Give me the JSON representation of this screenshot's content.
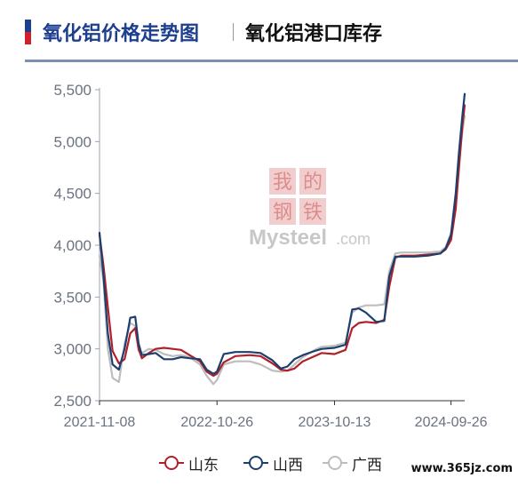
{
  "header": {
    "active_tab": "氧化铝价格走势图",
    "other_tab": "氧化铝港口库存",
    "accent_colors": [
      "#1d3f8f",
      "#d21f2b"
    ]
  },
  "watermark": {
    "chars": [
      "我",
      "的",
      "钢",
      "铁"
    ],
    "brand": "Mysteel",
    "suffix": ".com"
  },
  "footer": {
    "url": "www.365jz.com"
  },
  "chart_data": {
    "type": "line",
    "title": "",
    "xlabel": "",
    "ylabel": "",
    "ylim": [
      2500,
      5500
    ],
    "yticks": [
      2500,
      3000,
      3500,
      4000,
      4500,
      5000,
      5500
    ],
    "ytick_labels": [
      "2,500",
      "3,000",
      "3,500",
      "4,000",
      "4,500",
      "5,000",
      "5,500"
    ],
    "xlim": [
      "2021-11-08",
      "2024-11-06"
    ],
    "xticks": [
      "2021-11-08",
      "2022-10-26",
      "2023-10-13",
      "2024-09-26"
    ],
    "grid": false,
    "legend_position": "bottom",
    "series": [
      {
        "name": "山东",
        "color": "#b0202b",
        "points": [
          [
            "2021-11-08",
            4100
          ],
          [
            "2021-11-20",
            3800
          ],
          [
            "2021-12-03",
            3400
          ],
          [
            "2021-12-17",
            2980
          ],
          [
            "2022-01-05",
            2860
          ],
          [
            "2022-01-22",
            2900
          ],
          [
            "2022-02-08",
            3150
          ],
          [
            "2022-02-23",
            3200
          ],
          [
            "2022-03-05",
            3000
          ],
          [
            "2022-03-15",
            2910
          ],
          [
            "2022-04-05",
            2960
          ],
          [
            "2022-04-25",
            3000
          ],
          [
            "2022-05-20",
            3010
          ],
          [
            "2022-06-15",
            3000
          ],
          [
            "2022-07-10",
            2990
          ],
          [
            "2022-08-05",
            2940
          ],
          [
            "2022-09-05",
            2880
          ],
          [
            "2022-09-25",
            2780
          ],
          [
            "2022-10-15",
            2740
          ],
          [
            "2022-10-26",
            2760
          ],
          [
            "2022-11-15",
            2870
          ],
          [
            "2022-12-20",
            2930
          ],
          [
            "2023-02-01",
            2940
          ],
          [
            "2023-03-05",
            2930
          ],
          [
            "2023-04-10",
            2860
          ],
          [
            "2023-05-05",
            2800
          ],
          [
            "2023-05-25",
            2790
          ],
          [
            "2023-06-15",
            2810
          ],
          [
            "2023-07-10",
            2880
          ],
          [
            "2023-08-15",
            2930
          ],
          [
            "2023-09-05",
            2960
          ],
          [
            "2023-10-13",
            2950
          ],
          [
            "2023-11-15",
            2990
          ],
          [
            "2023-12-05",
            3200
          ],
          [
            "2023-12-25",
            3250
          ],
          [
            "2024-01-15",
            3260
          ],
          [
            "2024-02-15",
            3250
          ],
          [
            "2024-03-10",
            3280
          ],
          [
            "2024-03-25",
            3600
          ],
          [
            "2024-04-12",
            3880
          ],
          [
            "2024-05-01",
            3900
          ],
          [
            "2024-06-10",
            3900
          ],
          [
            "2024-07-20",
            3910
          ],
          [
            "2024-08-25",
            3920
          ],
          [
            "2024-09-10",
            3960
          ],
          [
            "2024-09-26",
            4050
          ],
          [
            "2024-10-10",
            4350
          ],
          [
            "2024-10-20",
            4750
          ],
          [
            "2024-10-30",
            5150
          ],
          [
            "2024-11-06",
            5350
          ]
        ]
      },
      {
        "name": "山西",
        "color": "#1d3f6e",
        "points": [
          [
            "2021-11-08",
            4120
          ],
          [
            "2021-11-20",
            3700
          ],
          [
            "2021-12-03",
            3150
          ],
          [
            "2021-12-17",
            2850
          ],
          [
            "2022-01-05",
            2800
          ],
          [
            "2022-01-22",
            3000
          ],
          [
            "2022-02-08",
            3300
          ],
          [
            "2022-02-23",
            3310
          ],
          [
            "2022-03-05",
            3050
          ],
          [
            "2022-03-15",
            2940
          ],
          [
            "2022-04-05",
            2950
          ],
          [
            "2022-04-25",
            2960
          ],
          [
            "2022-05-20",
            2900
          ],
          [
            "2022-06-15",
            2900
          ],
          [
            "2022-07-10",
            2920
          ],
          [
            "2022-08-05",
            2910
          ],
          [
            "2022-09-05",
            2900
          ],
          [
            "2022-09-25",
            2800
          ],
          [
            "2022-10-15",
            2760
          ],
          [
            "2022-10-26",
            2780
          ],
          [
            "2022-11-15",
            2950
          ],
          [
            "2022-12-20",
            2970
          ],
          [
            "2023-02-01",
            2970
          ],
          [
            "2023-03-05",
            2960
          ],
          [
            "2023-04-10",
            2890
          ],
          [
            "2023-05-05",
            2810
          ],
          [
            "2023-05-25",
            2830
          ],
          [
            "2023-06-15",
            2900
          ],
          [
            "2023-07-10",
            2940
          ],
          [
            "2023-08-15",
            2980
          ],
          [
            "2023-09-05",
            3000
          ],
          [
            "2023-10-13",
            3010
          ],
          [
            "2023-11-15",
            3040
          ],
          [
            "2023-12-05",
            3380
          ],
          [
            "2023-12-25",
            3390
          ],
          [
            "2024-01-15",
            3350
          ],
          [
            "2024-02-15",
            3260
          ],
          [
            "2024-03-10",
            3270
          ],
          [
            "2024-03-25",
            3700
          ],
          [
            "2024-04-12",
            3890
          ],
          [
            "2024-05-01",
            3890
          ],
          [
            "2024-06-10",
            3890
          ],
          [
            "2024-07-20",
            3900
          ],
          [
            "2024-08-25",
            3920
          ],
          [
            "2024-09-10",
            3970
          ],
          [
            "2024-09-26",
            4100
          ],
          [
            "2024-10-10",
            4500
          ],
          [
            "2024-10-20",
            4900
          ],
          [
            "2024-10-30",
            5250
          ],
          [
            "2024-11-06",
            5460
          ]
        ]
      },
      {
        "name": "广西",
        "color": "#bdbdbd",
        "points": [
          [
            "2021-11-08",
            3900
          ],
          [
            "2021-11-20",
            3650
          ],
          [
            "2021-12-03",
            3000
          ],
          [
            "2021-12-17",
            2720
          ],
          [
            "2022-01-05",
            2680
          ],
          [
            "2022-01-22",
            3050
          ],
          [
            "2022-02-08",
            3250
          ],
          [
            "2022-02-23",
            3220
          ],
          [
            "2022-03-05",
            2980
          ],
          [
            "2022-03-15",
            2960
          ],
          [
            "2022-04-05",
            3000
          ],
          [
            "2022-04-25",
            2990
          ],
          [
            "2022-05-20",
            2950
          ],
          [
            "2022-06-15",
            2930
          ],
          [
            "2022-07-10",
            2940
          ],
          [
            "2022-08-05",
            2920
          ],
          [
            "2022-09-05",
            2850
          ],
          [
            "2022-09-25",
            2740
          ],
          [
            "2022-10-15",
            2660
          ],
          [
            "2022-10-26",
            2700
          ],
          [
            "2022-11-15",
            2850
          ],
          [
            "2022-12-20",
            2880
          ],
          [
            "2023-02-01",
            2880
          ],
          [
            "2023-03-05",
            2850
          ],
          [
            "2023-04-10",
            2790
          ],
          [
            "2023-05-05",
            2780
          ],
          [
            "2023-05-25",
            2790
          ],
          [
            "2023-06-15",
            2850
          ],
          [
            "2023-07-10",
            2920
          ],
          [
            "2023-08-15",
            2990
          ],
          [
            "2023-09-05",
            3020
          ],
          [
            "2023-10-13",
            3030
          ],
          [
            "2023-11-15",
            3060
          ],
          [
            "2023-12-05",
            3350
          ],
          [
            "2023-12-25",
            3400
          ],
          [
            "2024-01-15",
            3420
          ],
          [
            "2024-02-15",
            3420
          ],
          [
            "2024-03-10",
            3430
          ],
          [
            "2024-03-25",
            3750
          ],
          [
            "2024-04-12",
            3920
          ],
          [
            "2024-05-01",
            3930
          ],
          [
            "2024-06-10",
            3930
          ],
          [
            "2024-07-20",
            3930
          ],
          [
            "2024-08-25",
            3940
          ],
          [
            "2024-09-10",
            3980
          ],
          [
            "2024-09-26",
            4120
          ],
          [
            "2024-10-10",
            4450
          ],
          [
            "2024-10-20",
            4800
          ],
          [
            "2024-10-30",
            5100
          ],
          [
            "2024-11-06",
            5250
          ]
        ]
      }
    ]
  }
}
